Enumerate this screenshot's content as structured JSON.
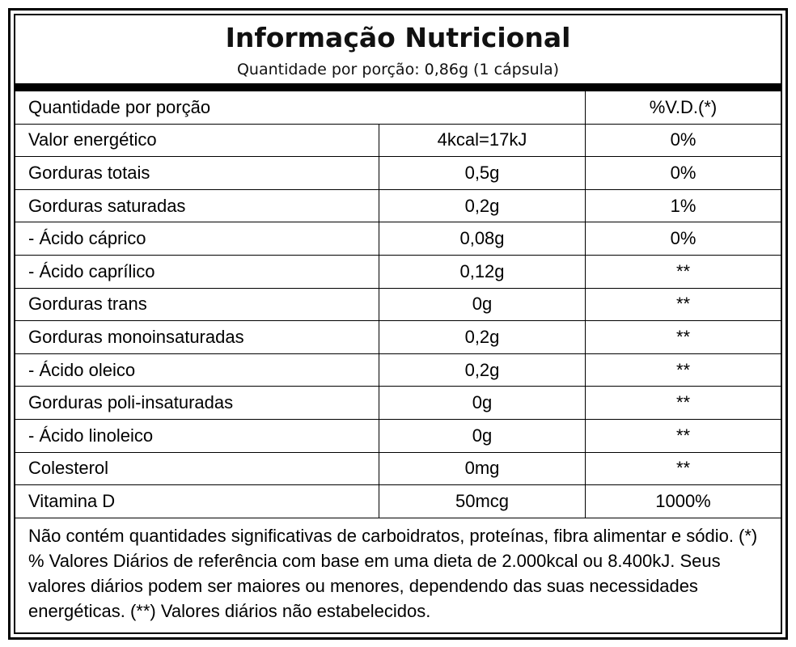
{
  "title": "Informação Nutricional",
  "subtitle": "Quantidade por porção: 0,86g (1 cápsula)",
  "table": {
    "header": {
      "label": "Quantidade por porção",
      "vd": "%V.D.(*)"
    },
    "rows": [
      {
        "label": "Valor energético",
        "amount": "4kcal=17kJ",
        "vd": "0%"
      },
      {
        "label": "Gorduras totais",
        "amount": "0,5g",
        "vd": "0%"
      },
      {
        "label": "Gorduras saturadas",
        "amount": "0,2g",
        "vd": "1%"
      },
      {
        "label": "- Ácido cáprico",
        "amount": "0,08g",
        "vd": "0%"
      },
      {
        "label": "- Ácido caprílico",
        "amount": "0,12g",
        "vd": "**"
      },
      {
        "label": "Gorduras trans",
        "amount": "0g",
        "vd": "**"
      },
      {
        "label": "Gorduras monoinsaturadas",
        "amount": "0,2g",
        "vd": "**"
      },
      {
        "label": "- Ácido oleico",
        "amount": "0,2g",
        "vd": "**"
      },
      {
        "label": "Gorduras poli-insaturadas",
        "amount": "0g",
        "vd": "**"
      },
      {
        "label": "- Ácido linoleico",
        "amount": "0g",
        "vd": "**"
      },
      {
        "label": "Colesterol",
        "amount": "0mg",
        "vd": "**"
      },
      {
        "label": "Vitamina D",
        "amount": "50mcg",
        "vd": "1000%"
      }
    ]
  },
  "footnote": "Não contém quantidades significativas de carboidratos, proteínas, fibra alimentar e sódio. (*) % Valores Diários de referência com base em uma dieta de 2.000kcal ou 8.400kJ. Seus valores diários podem ser maiores ou menores, dependendo das suas necessidades energéticas. (**) Valores diários não estabelecidos."
}
